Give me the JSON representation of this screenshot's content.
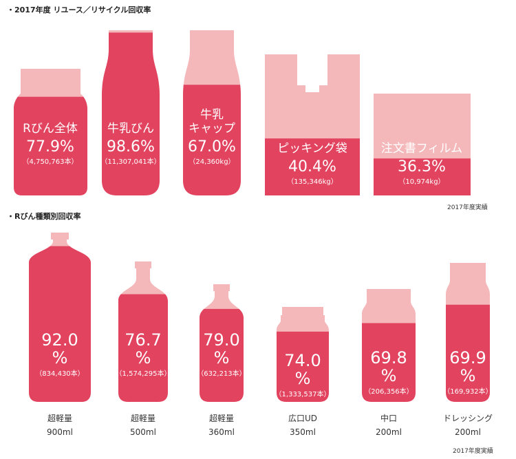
{
  "colors": {
    "fill": "#e2435f",
    "empty": "#f4b8bb"
  },
  "section1": {
    "title": "・2017年度 リユース／リサイクル回収率",
    "note": "2017年度実績"
  },
  "section2": {
    "title": "・Rびん種類別回収率",
    "note": "2017年度実績"
  },
  "chart_data": [
    {
      "type": "bar",
      "title": "・2017年度 リユース／リサイクル回収率",
      "ylim": [
        0,
        100
      ],
      "categories": [
        "Rびん全体",
        "牛乳びん",
        "牛乳キャップ",
        "ピッキング袋",
        "注文書フィルム"
      ],
      "values": [
        77.9,
        98.6,
        67.0,
        40.4,
        36.3
      ],
      "items": [
        {
          "name": "Rびん全体",
          "name_lines": [
            "Rびん全体"
          ],
          "value": 77.9,
          "pct_label": "77.9%",
          "count_label": "（4,750,763本）",
          "shape": "jar"
        },
        {
          "name": "牛乳びん",
          "name_lines": [
            "牛乳びん"
          ],
          "value": 98.6,
          "pct_label": "98.6%",
          "count_label": "（11,307,041本）",
          "shape": "milk"
        },
        {
          "name": "牛乳キャップ",
          "name_lines": [
            "牛乳",
            "キャップ"
          ],
          "value": 67.0,
          "pct_label": "67.0%",
          "count_label": "（24,360kg）",
          "shape": "milk"
        },
        {
          "name": "ピッキング袋",
          "name_lines": [
            "ピッキング袋"
          ],
          "value": 40.4,
          "pct_label": "40.4%",
          "count_label": "（135,346kg）",
          "shape": "bag"
        },
        {
          "name": "注文書フィルム",
          "name_lines": [
            "注文書フィルム"
          ],
          "value": 36.3,
          "pct_label": "36.3%",
          "count_label": "（10,974kg）",
          "shape": "rect"
        }
      ]
    },
    {
      "type": "bar",
      "title": "・Rびん種類別回収率",
      "ylim": [
        0,
        100
      ],
      "categories": [
        "超軽量 900ml",
        "超軽量 500ml",
        "超軽量 360ml",
        "広口UD 350ml",
        "中口 200ml",
        "ドレッシング 200ml"
      ],
      "values": [
        92.0,
        76.7,
        79.0,
        74.0,
        69.8,
        69.9
      ],
      "items": [
        {
          "cap1": "超軽量",
          "cap2": "900ml",
          "value": 92.0,
          "num_label": "92.0",
          "unit": "%",
          "count_label": "（834,430本）",
          "shape": "b900"
        },
        {
          "cap1": "超軽量",
          "cap2": "500ml",
          "value": 76.7,
          "num_label": "76.7",
          "unit": "%",
          "count_label": "（1,574,295本）",
          "shape": "b500"
        },
        {
          "cap1": "超軽量",
          "cap2": "360ml",
          "value": 79.0,
          "num_label": "79.0",
          "unit": "%",
          "count_label": "（632,213本）",
          "shape": "b360"
        },
        {
          "cap1": "広口UD",
          "cap2": "350ml",
          "value": 74.0,
          "num_label": "74.0",
          "unit": "%",
          "count_label": "（1,333,537本）",
          "shape": "wide"
        },
        {
          "cap1": "中口",
          "cap2": "200ml",
          "value": 69.8,
          "num_label": "69.8",
          "unit": "%",
          "count_label": "（206,356本）",
          "shape": "mid"
        },
        {
          "cap1": "ドレッシング",
          "cap2": "200ml",
          "value": 69.9,
          "num_label": "69.9",
          "unit": "%",
          "count_label": "（169,932本）",
          "shape": "dress"
        }
      ]
    }
  ]
}
